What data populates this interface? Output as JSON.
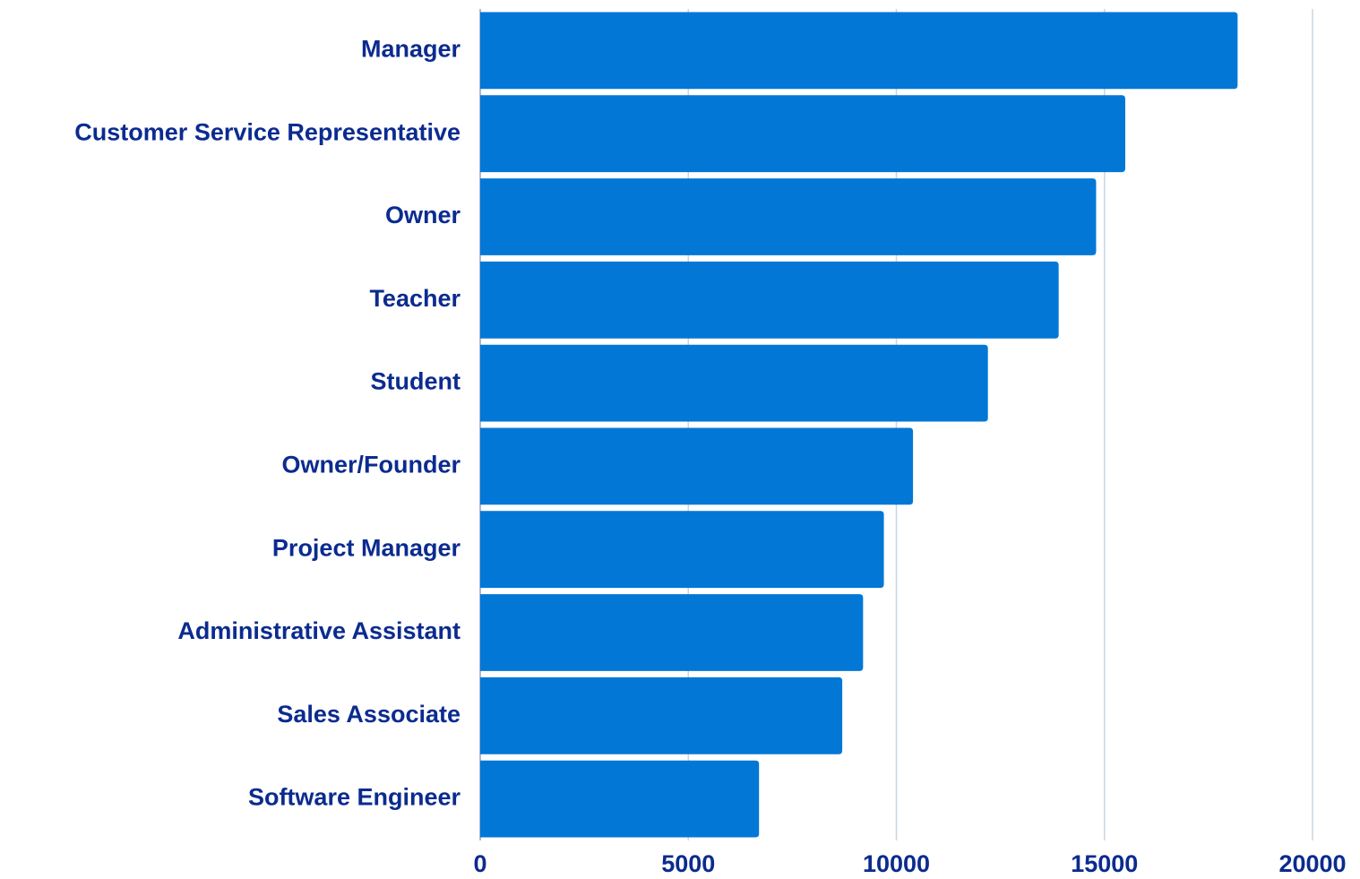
{
  "chart_data": {
    "type": "barh",
    "categories": [
      "Manager",
      "Customer Service Representative",
      "Owner",
      "Teacher",
      "Student",
      "Owner/Founder",
      "Project Manager",
      "Administrative Assistant",
      "Sales Associate",
      "Software Engineer"
    ],
    "values": [
      18200,
      15500,
      14800,
      13900,
      12200,
      10400,
      9700,
      9200,
      8700,
      6700
    ],
    "color": "#0277d6",
    "xlim": [
      0,
      20000
    ],
    "xticks": [
      0,
      5000,
      10000,
      15000,
      20000
    ],
    "grid": true
  }
}
